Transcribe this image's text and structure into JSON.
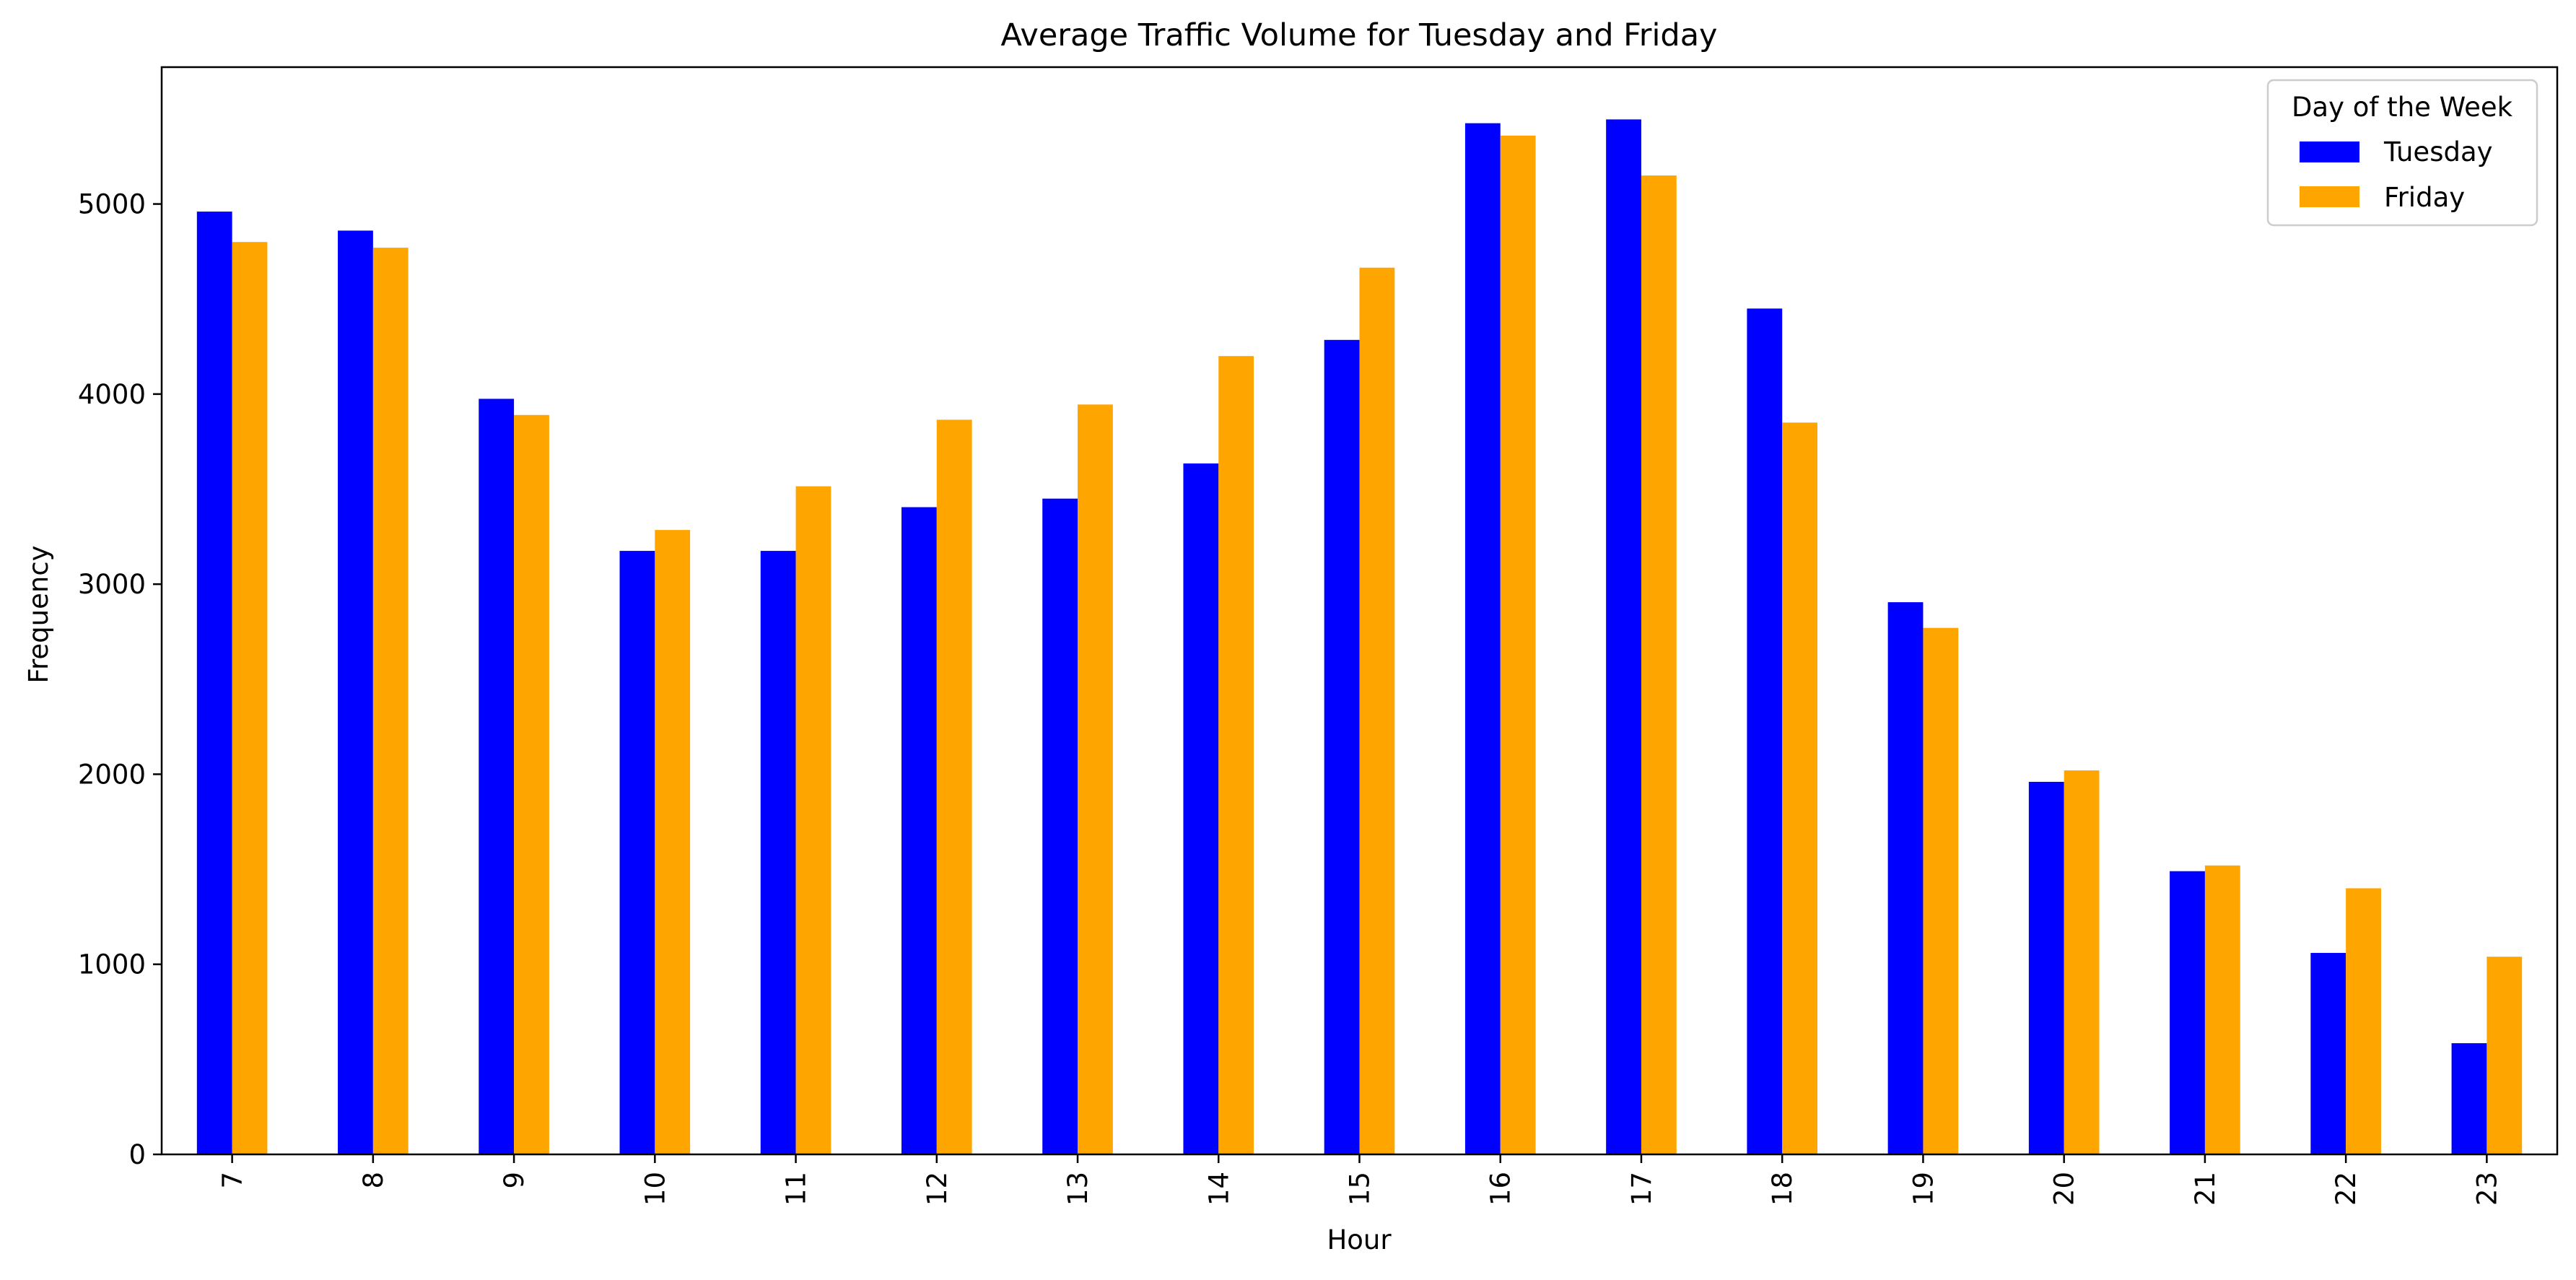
{
  "chart_data": {
    "type": "bar",
    "title": "Average Traffic Volume for Tuesday and Friday",
    "xlabel": "Hour",
    "ylabel": "Frequency",
    "categories": [
      "7",
      "8",
      "9",
      "10",
      "11",
      "12",
      "13",
      "14",
      "15",
      "16",
      "17",
      "18",
      "19",
      "20",
      "21",
      "22",
      "23"
    ],
    "series": [
      {
        "name": "Tuesday",
        "color": "#0000ff",
        "values": [
          4960,
          4860,
          3975,
          3175,
          3175,
          3405,
          3450,
          3635,
          4285,
          5425,
          5445,
          4450,
          2905,
          1960,
          1490,
          1060,
          585
        ]
      },
      {
        "name": "Friday",
        "color": "#ffa500",
        "values": [
          4800,
          4770,
          3890,
          3285,
          3515,
          3865,
          3945,
          4200,
          4665,
          5360,
          5150,
          3850,
          2770,
          2020,
          1520,
          1400,
          1040
        ]
      }
    ],
    "ylim": [
      0,
      5720
    ],
    "yticks": [
      0,
      1000,
      2000,
      3000,
      4000,
      5000
    ],
    "legend": {
      "title": "Day of the Week",
      "position": "top-right"
    },
    "grid": false
  }
}
